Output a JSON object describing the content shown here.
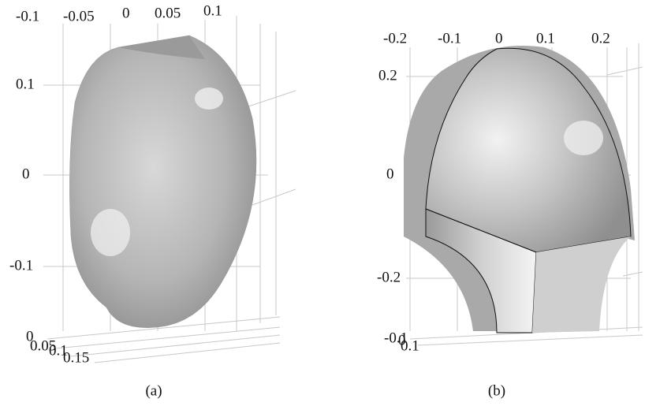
{
  "panels": [
    {
      "caption": "(a)",
      "top_ticks": [
        "-0.1",
        "-0.05",
        "0",
        "0.05",
        "0.1"
      ],
      "left_ticks": [
        "0.1",
        "0",
        "-0.1"
      ],
      "bottom_ticks": [
        "0",
        "0.05",
        "0.1",
        "0.15"
      ]
    },
    {
      "caption": "(b)",
      "top_ticks": [
        "-0.2",
        "-0.1",
        "0",
        "0.1",
        "0.2"
      ],
      "left_ticks": [
        "0.2",
        "0",
        "-0.2"
      ],
      "bottom_ticks": [
        "-0.1",
        "0",
        "0.1"
      ]
    }
  ]
}
